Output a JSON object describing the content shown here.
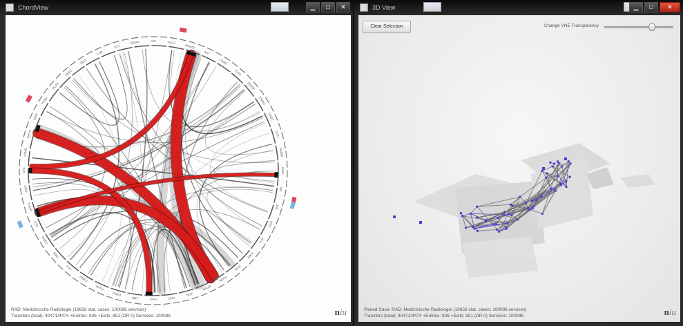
{
  "left_window": {
    "title": "ChordView",
    "controls": {
      "minimize": "▁",
      "maximize": "□",
      "close": "✕"
    },
    "chord_segments": [
      "AIR",
      "ALLG",
      "ANGIO",
      "AST",
      "CARD",
      "CHIR",
      "DERM",
      "ENDO",
      "GAST",
      "GYN",
      "HAEM",
      "HNO",
      "INF",
      "INT",
      "KAR",
      "KJP",
      "MKG",
      "NCH",
      "NEPH",
      "NEUR",
      "NUK",
      "ONK",
      "OPH",
      "ORT",
      "PAED",
      "PATH",
      "PNEU",
      "PSY",
      "RAD",
      "RHEU",
      "STR",
      "THOR",
      "URO",
      "VAS",
      "ANAE",
      "PHYS",
      "GER",
      "TRAU",
      "PLAS",
      "HERZ",
      "NOT",
      "LAB",
      "ICU",
      "REHA"
    ],
    "status_line1": "RAD: Medizinische Radiologie (19656 stat. cases; 100086 services)",
    "status_line2": "Transfers (total): 40471/4474   +Entries: 836   +Exits: 851 (DR 0) Services: 100086",
    "logo_a": "n",
    "logo_b": "iu"
  },
  "right_window": {
    "title": "3D View",
    "controls": {
      "minimize": "▁",
      "maximize": "□",
      "close": "✕"
    },
    "clear_button": "Clear Selection",
    "slider_label": "Change VNE Transparency",
    "slider_value": 0.74,
    "status_line1": "Picked Case: RAD: Medizinische Radiologie (19656 stat. cases; 100086 services)",
    "status_line2": "Transfers (total): 40471/4474   +Entries: 836   +Exits: 851 (DR 0) Services: 100086",
    "logo_a": "n",
    "logo_b": "iu"
  },
  "colors": {
    "chord_red": "#e01d1d",
    "chord_gray": "#8e8e8e",
    "node_blue": "#4a3fc8",
    "mesh_gray": "#6f6f6f"
  }
}
